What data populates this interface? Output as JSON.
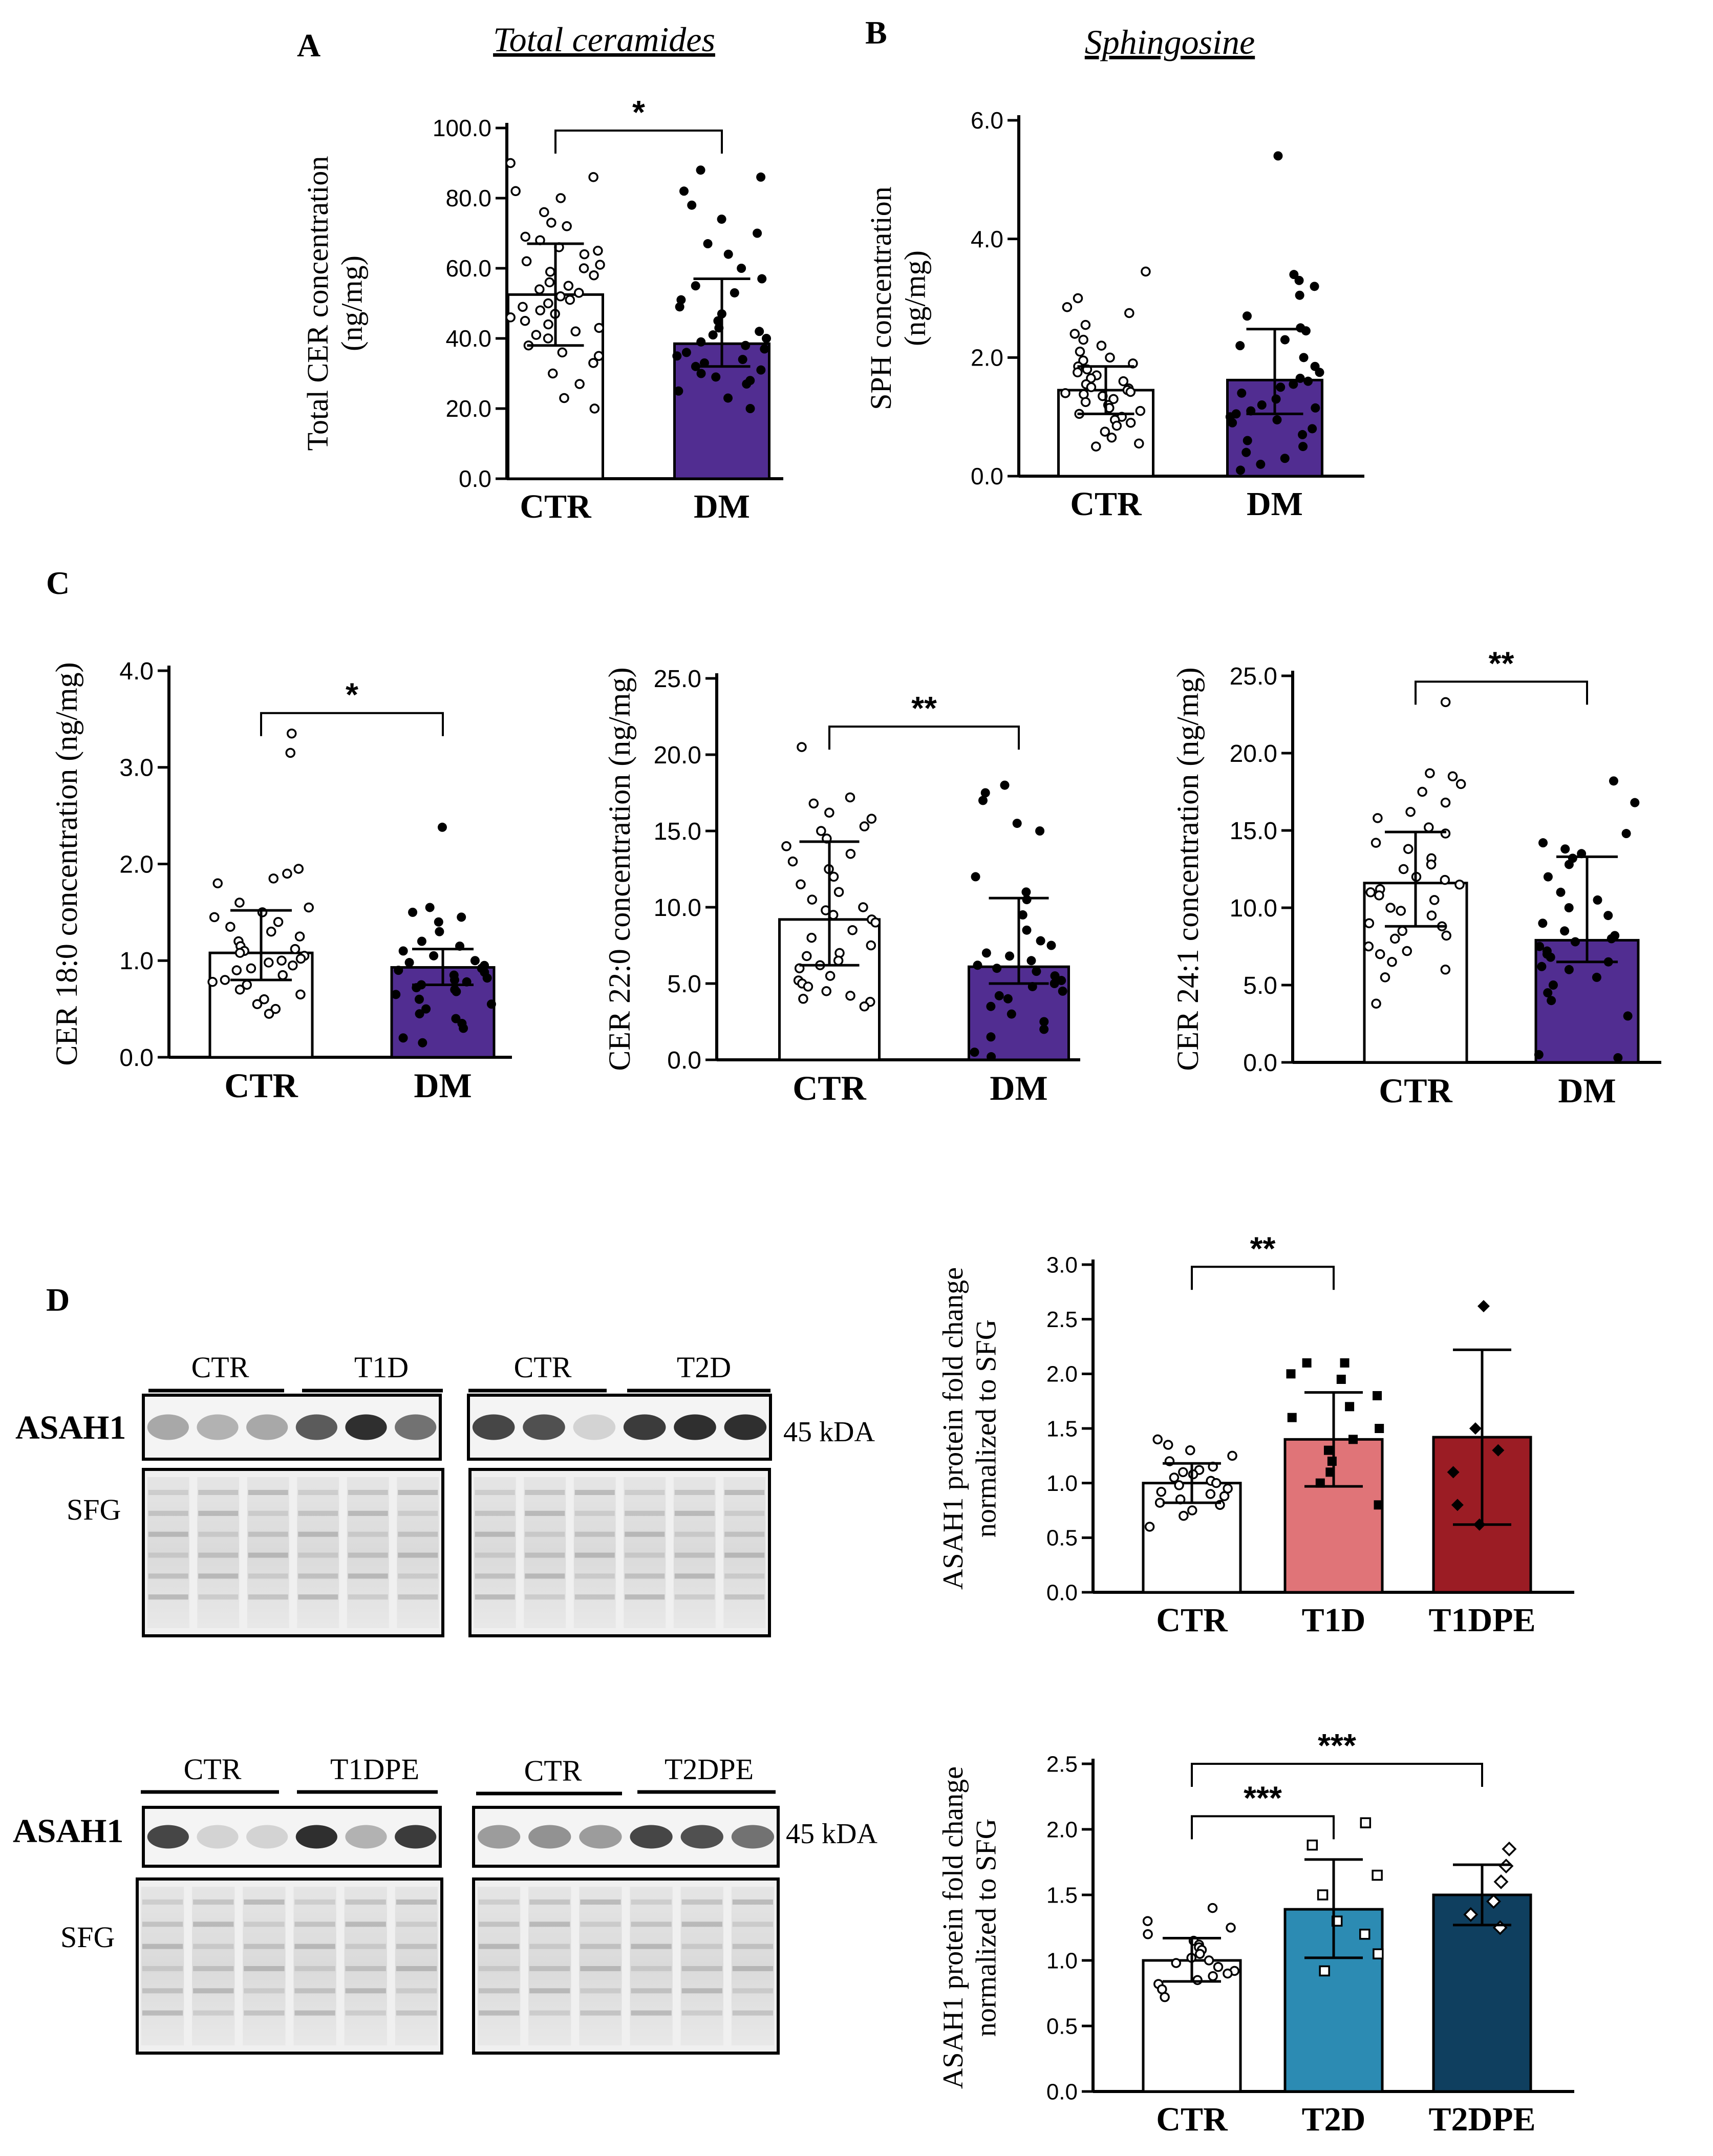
{
  "panel_labels": [
    "A",
    "B",
    "C",
    "D"
  ],
  "colors": {
    "dm": "#512D91",
    "t1d": "#E07478",
    "t1dpe": "#9B1C24",
    "t2d": "#2C8BB3",
    "t2dpe": "#0F3F5F",
    "ctr": "#FFFFFF",
    "axis": "#000000"
  },
  "chart_data": [
    {
      "id": "A",
      "type": "bar",
      "title": "Total ceramides",
      "ylabel": "Total CER concentration (ng/mg)",
      "ylim": [
        0,
        100
      ],
      "yticks": [
        "0.0",
        "20.0",
        "40.0",
        "60.0",
        "80.0",
        "100.0"
      ],
      "categories": [
        "CTR",
        "DM"
      ],
      "values": [
        52.5,
        38.5
      ],
      "err_low": [
        38,
        32
      ],
      "err_high": [
        67,
        57
      ],
      "significance": [
        {
          "from": 0,
          "to": 1,
          "label": "*"
        }
      ],
      "points": [
        [
          90,
          86,
          82,
          80,
          76,
          73,
          72,
          69,
          68,
          66,
          65,
          64,
          62,
          61,
          60,
          59,
          58,
          56,
          55,
          54,
          53,
          52,
          51,
          50,
          49,
          48,
          47,
          46,
          45,
          44,
          43,
          42,
          41,
          40,
          38,
          36,
          35,
          33,
          30,
          27,
          23,
          20
        ],
        [
          88,
          86,
          82,
          78,
          74,
          70,
          67,
          64,
          60,
          57,
          55,
          53,
          51,
          49,
          47,
          45,
          43,
          42,
          41,
          40,
          39,
          38,
          37,
          36,
          35,
          34,
          33,
          32,
          31,
          30,
          29,
          28,
          27,
          25,
          23,
          20
        ]
      ],
      "markers": [
        "open",
        "filled"
      ]
    },
    {
      "id": "B",
      "type": "bar",
      "title": "Sphingosine",
      "ylabel": "SPH concentration (ng/mg)",
      "ylim": [
        0,
        6
      ],
      "yticks": [
        "0.0",
        "2.0",
        "4.0",
        "6.0"
      ],
      "categories": [
        "CTR",
        "DM"
      ],
      "values": [
        1.45,
        1.62
      ],
      "err_low": [
        1.05,
        1.05
      ],
      "err_high": [
        1.85,
        2.48
      ],
      "significance": [],
      "points": [
        [
          3.45,
          3.0,
          2.85,
          2.75,
          2.55,
          2.4,
          2.3,
          2.2,
          2.1,
          2.0,
          1.95,
          1.9,
          1.85,
          1.8,
          1.75,
          1.7,
          1.65,
          1.6,
          1.55,
          1.5,
          1.48,
          1.45,
          1.42,
          1.4,
          1.38,
          1.35,
          1.3,
          1.25,
          1.2,
          1.15,
          1.1,
          1.05,
          1.0,
          0.95,
          0.9,
          0.85,
          0.75,
          0.65,
          0.55,
          0.5
        ],
        [
          5.4,
          3.4,
          3.3,
          3.2,
          3.05,
          2.7,
          2.5,
          2.45,
          2.3,
          2.2,
          2.0,
          1.85,
          1.75,
          1.65,
          1.6,
          1.55,
          1.5,
          1.4,
          1.3,
          1.2,
          1.15,
          1.1,
          1.05,
          1.0,
          0.95,
          0.9,
          0.8,
          0.7,
          0.6,
          0.5,
          0.4,
          0.3,
          0.2,
          0.1
        ]
      ],
      "markers": [
        "open",
        "filled"
      ]
    },
    {
      "id": "C1",
      "type": "bar",
      "title": "",
      "ylabel": "CER 18:0 concentration (ng/mg)",
      "ylim": [
        0,
        4
      ],
      "yticks": [
        "0.0",
        "1.0",
        "2.0",
        "3.0",
        "4.0"
      ],
      "categories": [
        "CTR",
        "DM"
      ],
      "values": [
        1.08,
        0.93
      ],
      "err_low": [
        0.8,
        0.75
      ],
      "err_high": [
        1.52,
        1.12
      ],
      "significance": [
        {
          "from": 0,
          "to": 1,
          "label": "*"
        }
      ],
      "points": [
        [
          3.35,
          3.15,
          1.95,
          1.9,
          1.85,
          1.8,
          1.6,
          1.55,
          1.5,
          1.45,
          1.4,
          1.35,
          1.3,
          1.25,
          1.2,
          1.15,
          1.12,
          1.1,
          1.08,
          1.05,
          1.02,
          1.0,
          0.98,
          0.95,
          0.92,
          0.9,
          0.85,
          0.8,
          0.78,
          0.75,
          0.7,
          0.65,
          0.6,
          0.55,
          0.5,
          0.45
        ],
        [
          2.38,
          1.55,
          1.5,
          1.45,
          1.4,
          1.3,
          1.2,
          1.15,
          1.1,
          1.05,
          1.0,
          0.98,
          0.95,
          0.92,
          0.9,
          0.88,
          0.85,
          0.82,
          0.8,
          0.78,
          0.75,
          0.72,
          0.7,
          0.68,
          0.65,
          0.6,
          0.55,
          0.5,
          0.45,
          0.4,
          0.35,
          0.3,
          0.2,
          0.15
        ]
      ],
      "markers": [
        "open",
        "filled"
      ]
    },
    {
      "id": "C2",
      "type": "bar",
      "title": "",
      "ylabel": "CER 22:0 concentration (ng/mg)",
      "ylim": [
        0,
        25
      ],
      "yticks": [
        "0.0",
        "5.0",
        "10.0",
        "15.0",
        "20.0",
        "25.0"
      ],
      "categories": [
        "CTR",
        "DM"
      ],
      "values": [
        9.2,
        6.1
      ],
      "err_low": [
        6.2,
        5.0
      ],
      "err_high": [
        14.3,
        10.6
      ],
      "significance": [
        {
          "from": 0,
          "to": 1,
          "label": "**"
        }
      ],
      "points": [
        [
          20.5,
          17.2,
          16.8,
          16.2,
          15.8,
          15.3,
          15.0,
          14.5,
          14.0,
          13.5,
          13.0,
          12.5,
          12.0,
          11.5,
          11.0,
          10.5,
          10.0,
          9.8,
          9.5,
          9.2,
          9.0,
          8.5,
          8.0,
          7.5,
          7.0,
          6.8,
          6.5,
          6.2,
          6.0,
          5.5,
          5.2,
          5.0,
          4.8,
          4.5,
          4.2,
          4.0,
          3.8,
          3.5
        ],
        [
          18.0,
          17.5,
          17.0,
          15.5,
          15.0,
          12.0,
          11.0,
          10.5,
          9.5,
          8.5,
          7.8,
          7.5,
          7.0,
          6.8,
          6.5,
          6.2,
          6.0,
          5.8,
          5.5,
          5.2,
          5.0,
          4.8,
          4.5,
          4.2,
          4.0,
          3.5,
          3.0,
          2.5,
          2.0,
          1.5,
          0.5,
          0.2
        ]
      ],
      "markers": [
        "open",
        "filled"
      ]
    },
    {
      "id": "C3",
      "type": "bar",
      "title": "",
      "ylabel": "CER 24:1 concentration (ng/mg)",
      "ylim": [
        0,
        25
      ],
      "yticks": [
        "0.0",
        "5.0",
        "10.0",
        "15.0",
        "20.0",
        "25.0"
      ],
      "categories": [
        "CTR",
        "DM"
      ],
      "values": [
        11.6,
        7.9
      ],
      "err_low": [
        8.8,
        6.5
      ],
      "err_high": [
        14.9,
        13.3
      ],
      "significance": [
        {
          "from": 0,
          "to": 1,
          "label": "**"
        }
      ],
      "points": [
        [
          23.3,
          18.7,
          18.5,
          18.0,
          17.5,
          16.8,
          16.2,
          15.8,
          15.2,
          14.8,
          14.2,
          13.8,
          13.2,
          12.8,
          12.5,
          12.0,
          11.8,
          11.5,
          11.2,
          11.0,
          10.8,
          10.5,
          10.0,
          9.8,
          9.5,
          9.0,
          8.8,
          8.5,
          8.2,
          8.0,
          7.5,
          7.2,
          7.0,
          6.5,
          6.0,
          5.5,
          3.8
        ],
        [
          18.2,
          16.8,
          14.8,
          14.2,
          13.8,
          13.5,
          13.2,
          12.8,
          12.0,
          11.0,
          10.5,
          10.0,
          9.5,
          9.0,
          8.5,
          8.2,
          8.0,
          7.8,
          7.5,
          7.2,
          7.0,
          6.8,
          6.5,
          6.2,
          6.0,
          5.5,
          5.0,
          4.5,
          4.0,
          3.0,
          0.5,
          0.3
        ]
      ],
      "markers": [
        "open",
        "filled"
      ]
    },
    {
      "id": "D1",
      "type": "bar",
      "title": "",
      "ylabel": "ASAH1 protein fold change normalized to SFG",
      "ylim": [
        0,
        3
      ],
      "yticks": [
        "0.0",
        "0.5",
        "1.0",
        "1.5",
        "2.0",
        "2.5",
        "3.0"
      ],
      "categories": [
        "CTR",
        "T1D",
        "T1DPE"
      ],
      "values": [
        1.0,
        1.4,
        1.42
      ],
      "err_low": [
        0.82,
        0.97,
        0.62
      ],
      "err_high": [
        1.18,
        1.83,
        2.22
      ],
      "significance": [
        {
          "from": 0,
          "to": 1,
          "label": "**"
        }
      ],
      "points": [
        [
          1.4,
          1.35,
          1.3,
          1.25,
          1.2,
          1.15,
          1.12,
          1.1,
          1.08,
          1.05,
          1.02,
          1.0,
          0.98,
          0.95,
          0.92,
          0.9,
          0.88,
          0.85,
          0.82,
          0.8,
          0.75,
          0.7,
          0.6
        ],
        [
          2.1,
          2.1,
          2.0,
          1.95,
          1.8,
          1.7,
          1.6,
          1.5,
          1.4,
          1.3,
          1.2,
          1.1,
          1.0,
          0.8
        ],
        [
          2.62,
          1.5,
          1.3,
          1.1,
          0.8,
          0.62
        ]
      ],
      "markers": [
        "open",
        "square",
        "diamond"
      ]
    },
    {
      "id": "D2",
      "type": "bar",
      "title": "",
      "ylabel": "ASAH1 protein fold change normalized to SFG",
      "ylim": [
        0,
        2.5
      ],
      "yticks": [
        "0.0",
        "0.5",
        "1.0",
        "1.5",
        "2.0",
        "2.5"
      ],
      "categories": [
        "CTR",
        "T2D",
        "T2DPE"
      ],
      "values": [
        1.0,
        1.39,
        1.5
      ],
      "err_low": [
        0.84,
        1.02,
        1.27
      ],
      "err_high": [
        1.17,
        1.77,
        1.73
      ],
      "significance": [
        {
          "from": 0,
          "to": 1,
          "label": "***"
        },
        {
          "from": 0,
          "to": 2,
          "label": "***"
        }
      ],
      "points": [
        [
          1.4,
          1.3,
          1.25,
          1.2,
          1.15,
          1.12,
          1.1,
          1.08,
          1.05,
          1.02,
          1.0,
          0.98,
          0.95,
          0.92,
          0.9,
          0.88,
          0.85,
          0.82,
          0.78,
          0.72
        ],
        [
          2.05,
          1.88,
          1.65,
          1.5,
          1.3,
          1.2,
          1.05,
          0.92
        ],
        [
          1.85,
          1.72,
          1.6,
          1.45,
          1.35,
          1.25
        ]
      ],
      "markers": [
        "open",
        "square",
        "diamond"
      ]
    }
  ],
  "blots": {
    "protein_label": "ASAH1",
    "loading_label": "SFG",
    "kda_label": "45 kDA",
    "top": {
      "left_groups": [
        "CTR",
        "T1D"
      ],
      "right_groups": [
        "CTR",
        "T2D"
      ]
    },
    "bottom": {
      "left_groups": [
        "CTR",
        "T1DPE"
      ],
      "right_groups": [
        "CTR",
        "T2DPE"
      ]
    }
  }
}
